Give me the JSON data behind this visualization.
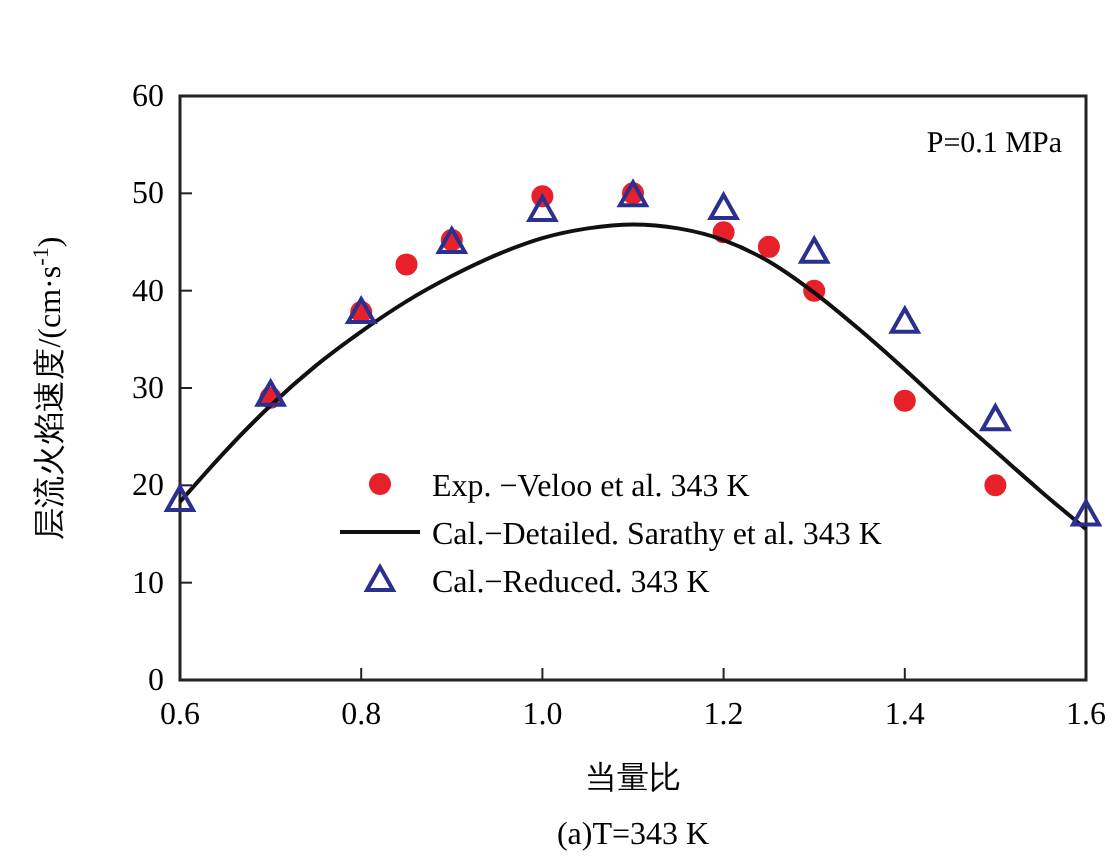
{
  "chart_data": {
    "type": "scatter",
    "xlabel": "当量比",
    "ylabel": "层流火焰速度/(cm·s$^{-1}$)",
    "xlim": [
      0.6,
      1.6
    ],
    "xticks": [
      {
        "value": 0.6,
        "label": "0.6"
      },
      {
        "value": 0.8,
        "label": "0.8"
      },
      {
        "value": 1,
        "label": "1.0"
      },
      {
        "value": 1.2,
        "label": "1.2"
      },
      {
        "value": 1.4,
        "label": "1.4"
      },
      {
        "value": 1.6,
        "label": "1.6"
      }
    ],
    "ylim": [
      0,
      60
    ],
    "yticks": [
      0,
      10,
      20,
      30,
      40,
      50,
      60
    ],
    "grid": false,
    "legend": "bottom left",
    "annotations": [
      "P=0.1 MPa",
      "(a)T=343 K"
    ],
    "series": [
      {
        "name": "Exp. −Veloo et al. 343 K",
        "marker": "circle",
        "color": "#e8202a",
        "x": [
          0.7,
          0.8,
          0.85,
          0.9,
          1.0,
          1.1,
          1.2,
          1.25,
          1.3,
          1.4,
          1.5
        ],
        "values": [
          29,
          37.8,
          42.7,
          45.2,
          49.7,
          50,
          46,
          44.5,
          40,
          28.7,
          20
        ]
      },
      {
        "name": "Cal.−Detailed. Sarathy et al. 343 K",
        "type": "line",
        "color": "#111111",
        "x": [
          0.6,
          0.65,
          0.7,
          0.75,
          0.8,
          0.85,
          0.9,
          0.95,
          1.0,
          1.05,
          1.1,
          1.15,
          1.2,
          1.25,
          1.3,
          1.35,
          1.4,
          1.45,
          1.5,
          1.55,
          1.6
        ],
        "values": [
          18.3,
          23.5,
          28.2,
          32.3,
          35.8,
          38.9,
          41.5,
          43.7,
          45.4,
          46.4,
          46.8,
          46.4,
          45.2,
          43,
          39.8,
          36,
          31.9,
          27.6,
          23.5,
          19.4,
          15.5
        ]
      },
      {
        "name": "Cal.−Reduced. 343 K",
        "marker": "triangle",
        "color": "#2b2f8f",
        "x": [
          0.6,
          0.7,
          0.8,
          0.9,
          1.0,
          1.1,
          1.2,
          1.3,
          1.4,
          1.5,
          1.6
        ],
        "values": [
          18.5,
          29.3,
          37.8,
          45,
          48.3,
          49.8,
          48.5,
          44,
          36.8,
          26.8,
          17
        ]
      }
    ]
  }
}
